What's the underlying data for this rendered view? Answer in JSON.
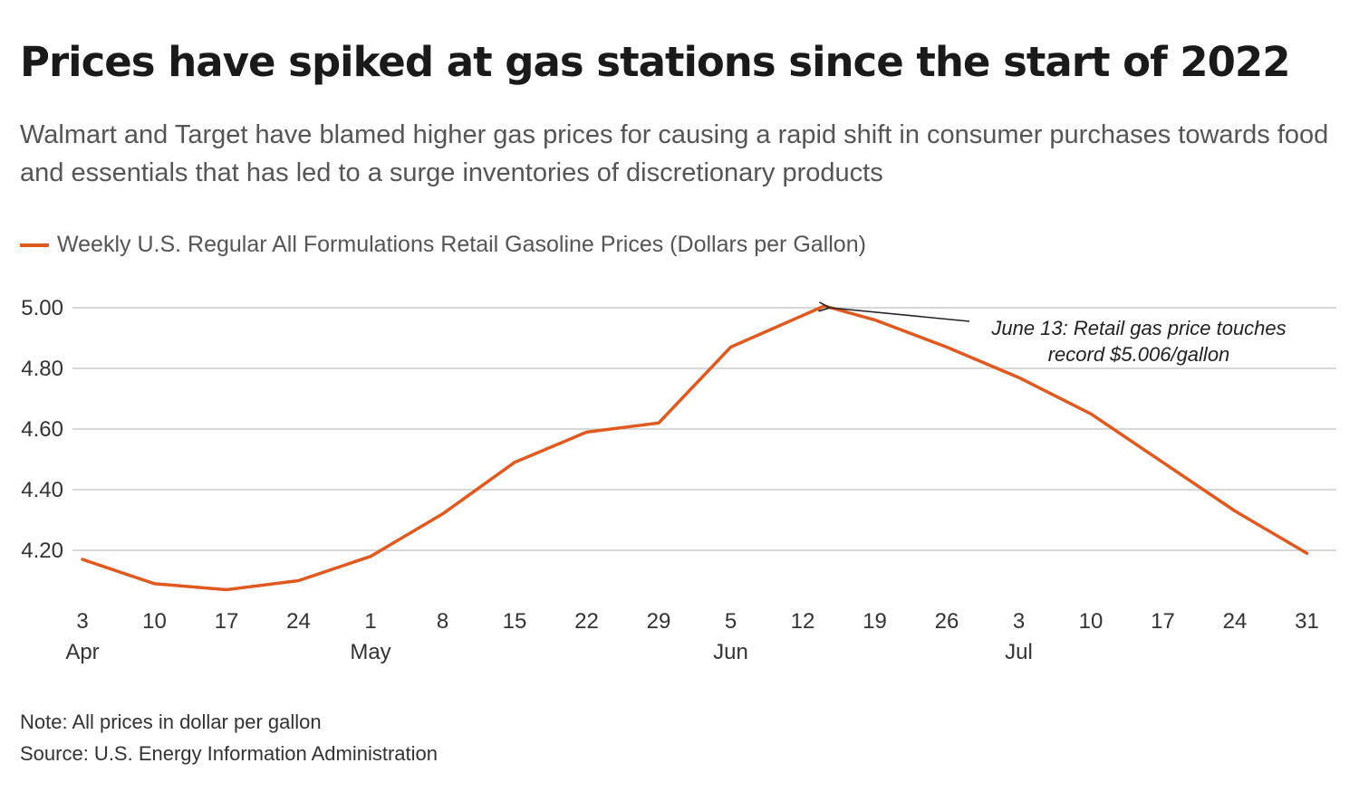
{
  "colors": {
    "line": "#e0591f",
    "grid": "#cccccc",
    "text": "#333333",
    "annotation": "#222222"
  },
  "header": {
    "title": "Prices have spiked at gas stations since the start of 2022",
    "subtitle": "Walmart and Target have blamed higher gas prices for causing a rapid shift in consumer purchases towards food and essentials that has led to a surge inventories of discretionary products"
  },
  "footer": {
    "note": "Note: All prices in dollar per gallon",
    "source": "Source: U.S. Energy Information Administration"
  },
  "chart_data": {
    "type": "line",
    "title": "Prices have spiked at gas stations since the start of 2022",
    "xlabel": "",
    "ylabel": "",
    "ylim": [
      4.0,
      5.0
    ],
    "yticks": [
      4.2,
      4.4,
      4.6,
      4.8,
      5.0
    ],
    "ytick_labels": [
      "4.20",
      "4.40",
      "4.60",
      "4.80",
      "5.00"
    ],
    "grid": true,
    "legend_position": "top-left",
    "categories": [
      "3",
      "10",
      "17",
      "24",
      "1",
      "8",
      "15",
      "22",
      "29",
      "5",
      "12",
      "19",
      "26",
      "3",
      "10",
      "17",
      "24",
      "31"
    ],
    "month_labels": [
      {
        "index": 0,
        "label": "Apr"
      },
      {
        "index": 4,
        "label": "May"
      },
      {
        "index": 9,
        "label": "Jun"
      },
      {
        "index": 13,
        "label": "Jul"
      }
    ],
    "series": [
      {
        "name": "Weekly U.S. Regular All Formulations Retail Gasoline Prices (Dollars per Gallon)",
        "x": [
          0,
          1,
          2,
          3,
          4,
          5,
          6,
          7,
          8,
          9,
          10.3,
          11,
          12,
          13,
          14,
          15,
          16,
          17
        ],
        "values": [
          4.17,
          4.09,
          4.07,
          4.1,
          4.18,
          4.32,
          4.49,
          4.59,
          4.62,
          4.87,
          5.006,
          4.96,
          4.87,
          4.77,
          4.65,
          4.49,
          4.33,
          4.19
        ]
      }
    ],
    "annotations": [
      {
        "text_line1": "June 13: Retail gas price touches",
        "text_line2": "record $5.006/gallon",
        "x": 10.3,
        "y": 5.006
      }
    ]
  }
}
